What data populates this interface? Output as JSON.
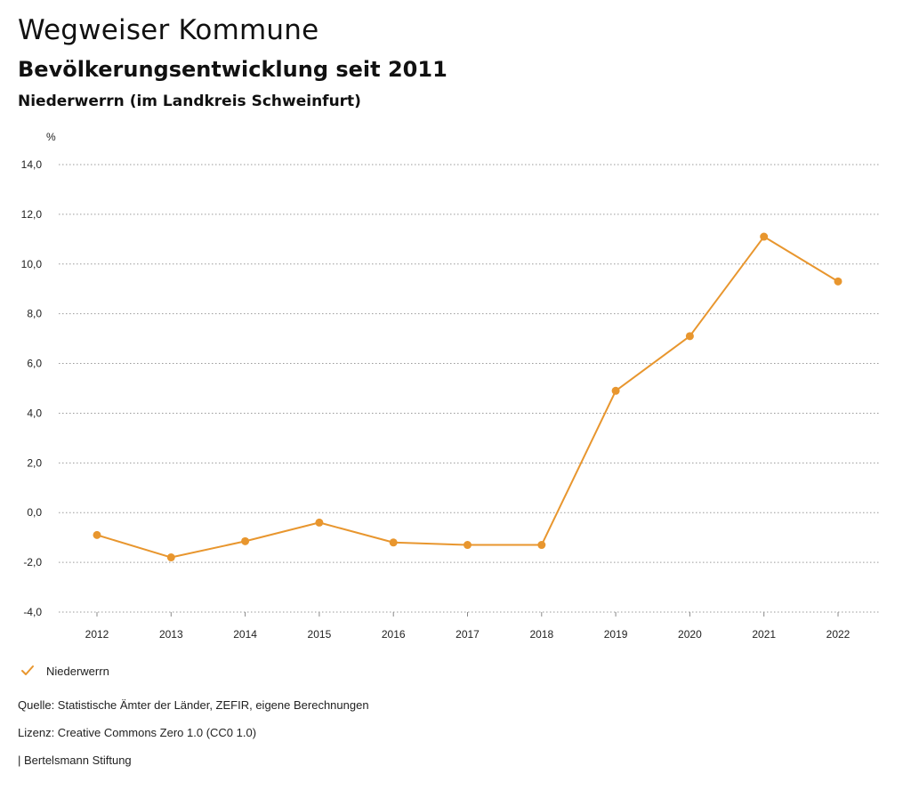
{
  "header": {
    "title": "Wegweiser Kommune",
    "subtitle": "Bevölkerungsentwicklung seit 2011",
    "place": "Niederwerrn (im Landkreis Schweinfurt)"
  },
  "chart_data": {
    "type": "line",
    "unit_label": "%",
    "categories": [
      "2012",
      "2013",
      "2014",
      "2015",
      "2016",
      "2017",
      "2018",
      "2019",
      "2020",
      "2021",
      "2022"
    ],
    "series": [
      {
        "name": "Niederwerrn",
        "color": "#E8962E",
        "values": [
          -0.9,
          -1.8,
          -1.15,
          -0.4,
          -1.2,
          -1.3,
          -1.3,
          4.9,
          7.1,
          11.1,
          9.3
        ]
      }
    ],
    "ylim": [
      -4,
      14
    ],
    "yticks": [
      14,
      12,
      10,
      8,
      6,
      4,
      2,
      0,
      -2,
      -4
    ],
    "ytick_labels": [
      "14,0",
      "12,0",
      "10,0",
      "8,0",
      "6,0",
      "4,0",
      "2,0",
      "0,0",
      "-2,0",
      "-4,0"
    ],
    "grid": true,
    "legend": "bottom-left"
  },
  "legend": {
    "label": "Niederwerrn",
    "icon": "check-mark-icon"
  },
  "footer": {
    "source": "Quelle: Statistische Ämter der Länder, ZEFIR, eigene Berechnungen",
    "license": "Lizenz: Creative Commons Zero 1.0 (CC0 1.0)",
    "publisher": "| Bertelsmann Stiftung"
  }
}
